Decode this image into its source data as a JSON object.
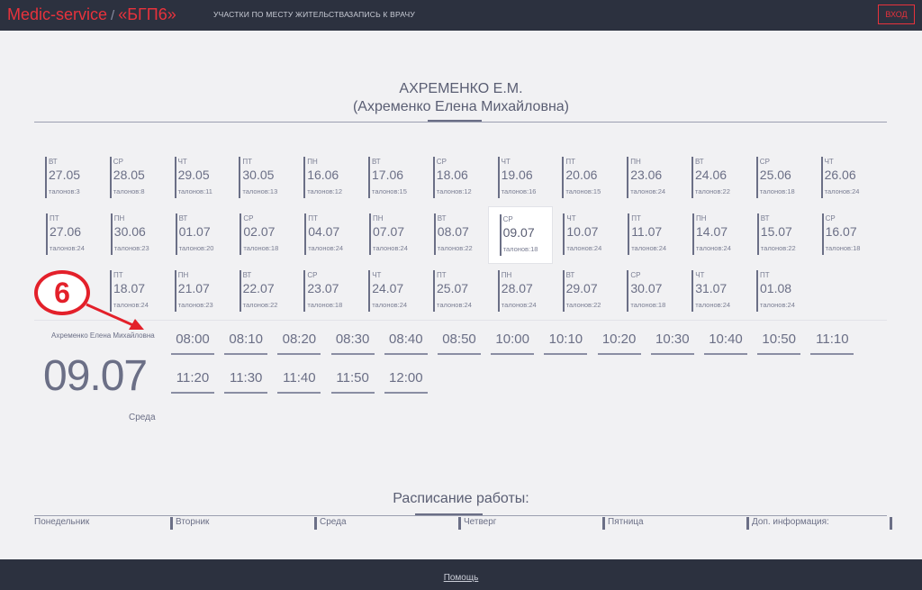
{
  "header": {
    "brand": "Medic-service",
    "separator": "/",
    "hospital": "«БГП6»",
    "nav": [
      "УЧАСТКИ ПО МЕСТУ ЖИТЕЛЬСТВА",
      "ЗАПИСЬ К ВРАЧУ"
    ],
    "login_label": "ВХОД"
  },
  "doctor": {
    "short_name": "АХРЕМЕНКО Е.М.",
    "full_name": "(Ахременко Елена Михайловна)"
  },
  "dates": [
    {
      "dow": "ВТ",
      "date": "27.05",
      "tickets": "талонов:3"
    },
    {
      "dow": "СР",
      "date": "28.05",
      "tickets": "талонов:8"
    },
    {
      "dow": "ЧТ",
      "date": "29.05",
      "tickets": "талонов:11"
    },
    {
      "dow": "ПТ",
      "date": "30.05",
      "tickets": "талонов:13"
    },
    {
      "dow": "ПН",
      "date": "16.06",
      "tickets": "талонов:12"
    },
    {
      "dow": "ВТ",
      "date": "17.06",
      "tickets": "талонов:15"
    },
    {
      "dow": "СР",
      "date": "18.06",
      "tickets": "талонов:12"
    },
    {
      "dow": "ЧТ",
      "date": "19.06",
      "tickets": "талонов:16"
    },
    {
      "dow": "ПТ",
      "date": "20.06",
      "tickets": "талонов:15"
    },
    {
      "dow": "ПН",
      "date": "23.06",
      "tickets": "талонов:24"
    },
    {
      "dow": "ВТ",
      "date": "24.06",
      "tickets": "талонов:22"
    },
    {
      "dow": "СР",
      "date": "25.06",
      "tickets": "талонов:18"
    },
    {
      "dow": "ЧТ",
      "date": "26.06",
      "tickets": "талонов:24"
    },
    {
      "dow": "ПТ",
      "date": "27.06",
      "tickets": "талонов:24"
    },
    {
      "dow": "ПН",
      "date": "30.06",
      "tickets": "талонов:23"
    },
    {
      "dow": "ВТ",
      "date": "01.07",
      "tickets": "талонов:20"
    },
    {
      "dow": "СР",
      "date": "02.07",
      "tickets": "талонов:18"
    },
    {
      "dow": "ПТ",
      "date": "04.07",
      "tickets": "талонов:24"
    },
    {
      "dow": "ПН",
      "date": "07.07",
      "tickets": "талонов:24"
    },
    {
      "dow": "ВТ",
      "date": "08.07",
      "tickets": "талонов:22"
    },
    {
      "dow": "СР",
      "date": "09.07",
      "tickets": "талонов:18",
      "selected": true
    },
    {
      "dow": "ЧТ",
      "date": "10.07",
      "tickets": "талонов:24"
    },
    {
      "dow": "ПТ",
      "date": "11.07",
      "tickets": "талонов:24"
    },
    {
      "dow": "ПН",
      "date": "14.07",
      "tickets": "талонов:24"
    },
    {
      "dow": "ВТ",
      "date": "15.07",
      "tickets": "талонов:22"
    },
    {
      "dow": "СР",
      "date": "16.07",
      "tickets": "талонов:18"
    },
    {
      "dow": "ПТ",
      "date": "18.07",
      "tickets": "талонов:24"
    },
    {
      "dow": "ПН",
      "date": "21.07",
      "tickets": "талонов:23"
    },
    {
      "dow": "ВТ",
      "date": "22.07",
      "tickets": "талонов:22"
    },
    {
      "dow": "СР",
      "date": "23.07",
      "tickets": "талонов:18"
    },
    {
      "dow": "ЧТ",
      "date": "24.07",
      "tickets": "талонов:24"
    },
    {
      "dow": "ПТ",
      "date": "25.07",
      "tickets": "талонов:24"
    },
    {
      "dow": "ПН",
      "date": "28.07",
      "tickets": "талонов:24"
    },
    {
      "dow": "ВТ",
      "date": "29.07",
      "tickets": "талонов:22"
    },
    {
      "dow": "СР",
      "date": "30.07",
      "tickets": "талонов:18"
    },
    {
      "dow": "ЧТ",
      "date": "31.07",
      "tickets": "талонов:24"
    },
    {
      "dow": "ПТ",
      "date": "01.08",
      "tickets": "талонов:24"
    }
  ],
  "day": {
    "doctor": "Ахременко Елена Михайловна",
    "date": "09.07",
    "weekday": "Среда"
  },
  "slots": [
    "08:00",
    "08:10",
    "08:20",
    "08:30",
    "08:40",
    "08:50",
    "10:00",
    "10:10",
    "10:20",
    "10:30",
    "10:40",
    "10:50",
    "11:10",
    "11:20",
    "11:30",
    "11:40",
    "11:50",
    "12:00"
  ],
  "annotation": {
    "number": "6",
    "color": "#e3202a"
  },
  "schedule": {
    "title": "Расписание работы:",
    "columns": [
      "Понедельник",
      "Вторник",
      "Среда",
      "Четверг",
      "Пятница",
      "Доп. информация:"
    ]
  },
  "footer": {
    "help": "Помощь"
  },
  "colors": {
    "accent": "#e8323c",
    "bar": "#2c313f",
    "text": "#6b6f86",
    "background": "#f1f1f3"
  }
}
